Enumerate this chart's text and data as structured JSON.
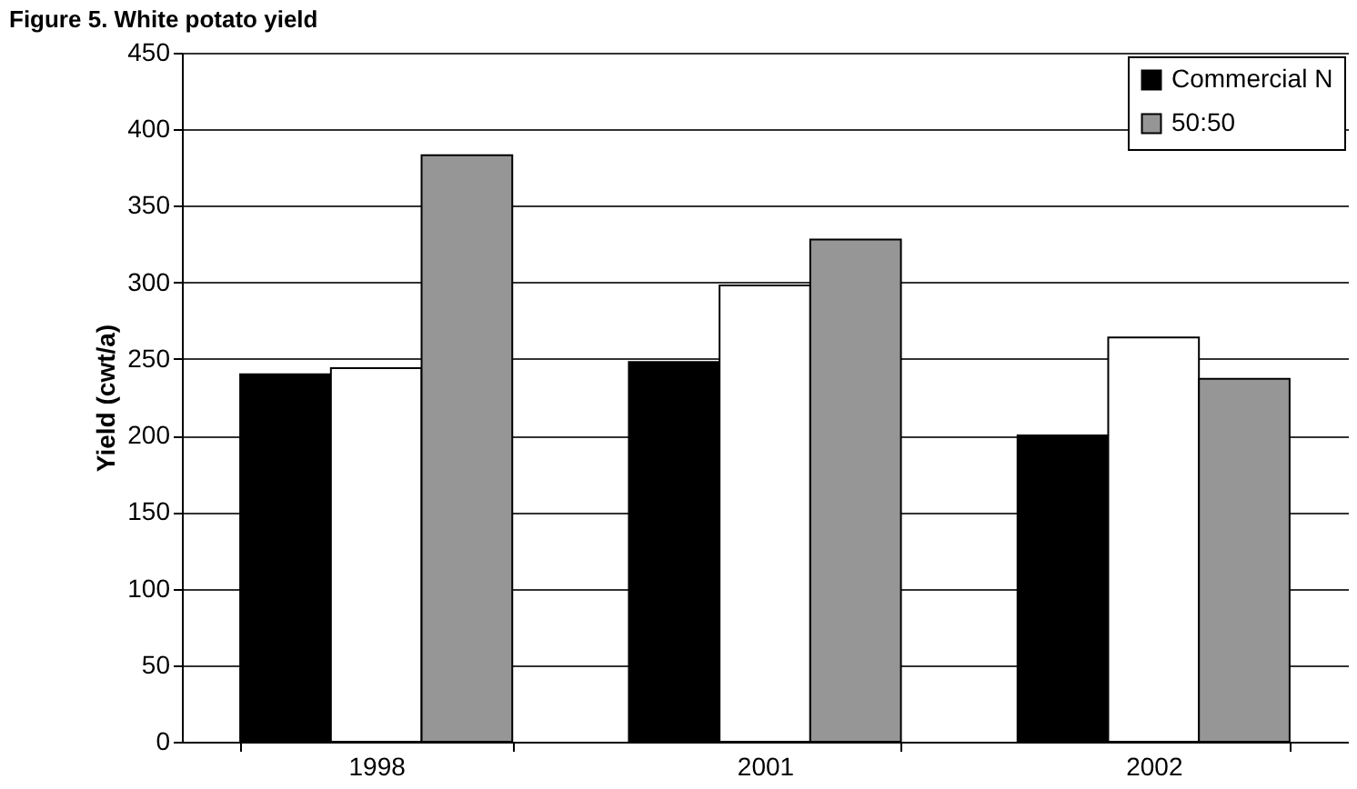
{
  "chart_data": {
    "type": "bar",
    "title": "Figure 5. White potato yield",
    "ylabel": "Yield (cwt/a)",
    "categories": [
      "1998",
      "2001",
      "2002"
    ],
    "series": [
      {
        "name": "Commercial N",
        "color": "#000000",
        "values": [
          240,
          248,
          200
        ]
      },
      {
        "color": "#ffffff",
        "values": [
          244,
          298,
          264
        ]
      },
      {
        "name": "50:50",
        "color": "#969696",
        "values": [
          383,
          328,
          237
        ]
      }
    ],
    "ylim": [
      0,
      450
    ],
    "yticks": [
      0,
      50,
      100,
      150,
      200,
      250,
      300,
      350,
      400,
      450
    ],
    "grid": "y",
    "legend": "top right"
  }
}
